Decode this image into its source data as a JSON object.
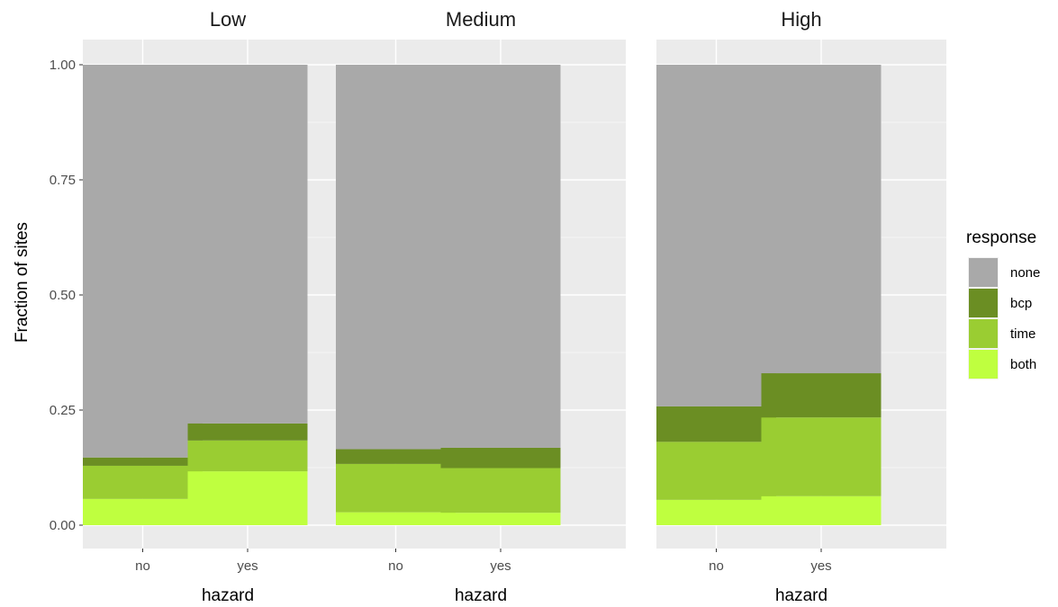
{
  "chart_data": {
    "type": "bar",
    "stacked": true,
    "facets": [
      "Low",
      "Medium",
      "High"
    ],
    "categories": [
      "no",
      "yes"
    ],
    "xlabel": "hazard",
    "ylabel": "Fraction of sites",
    "ylim": [
      0,
      1
    ],
    "yticks": [
      "0.00",
      "0.25",
      "0.50",
      "0.75",
      "1.00"
    ],
    "legend": {
      "title": "response",
      "position": "right"
    },
    "series": [
      {
        "name": "both",
        "color": "#bfff3f",
        "values": {
          "Low": [
            0.057,
            0.117
          ],
          "Medium": [
            0.028,
            0.027
          ],
          "High": [
            0.055,
            0.063
          ]
        }
      },
      {
        "name": "time",
        "color": "#9acd32",
        "values": {
          "Low": [
            0.072,
            0.067
          ],
          "Medium": [
            0.105,
            0.097
          ],
          "High": [
            0.126,
            0.171
          ]
        }
      },
      {
        "name": "bcp",
        "color": "#6b8e23",
        "values": {
          "Low": [
            0.018,
            0.037
          ],
          "Medium": [
            0.032,
            0.044
          ],
          "High": [
            0.077,
            0.096
          ]
        }
      },
      {
        "name": "none",
        "color": "#a9a9a9",
        "values": {
          "Low": [
            0.853,
            0.779
          ],
          "Medium": [
            0.835,
            0.832
          ],
          "High": [
            0.742,
            0.67
          ]
        }
      }
    ],
    "legend_order": [
      "none",
      "bcp",
      "time",
      "both"
    ],
    "grid": true
  }
}
